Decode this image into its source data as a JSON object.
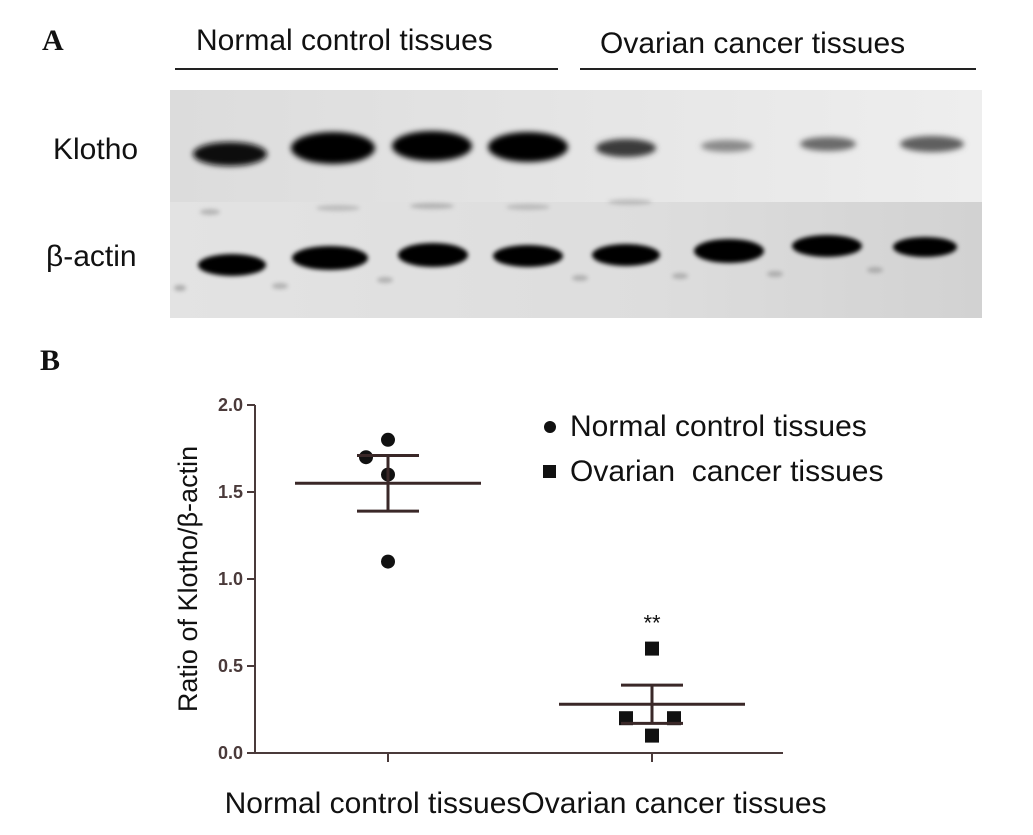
{
  "panel_a": {
    "letter": "A",
    "header_left": "Normal control tissues",
    "header_right": "Ovarian cancer tissues",
    "row_labels": [
      "Klotho",
      "β-actin"
    ]
  },
  "panel_b": {
    "letter": "B"
  },
  "chart_data": {
    "type": "scatter",
    "title": "",
    "xlabel": "",
    "ylabel": "Ratio of Klotho/β-actin",
    "categories": [
      "Normal control tissues",
      "Ovarian cancer tissues"
    ],
    "ylim": [
      0.0,
      2.0
    ],
    "yticks": [
      "0.0",
      "0.5",
      "1.0",
      "1.5",
      "2.0"
    ],
    "grid": false,
    "legend_position": "top-right",
    "series": [
      {
        "name": "Normal control tissues",
        "marker": "circle",
        "category": "Normal control tissues",
        "values": [
          1.8,
          1.7,
          1.6,
          1.1
        ],
        "mean": 1.55,
        "sem_upper": 1.71,
        "sem_lower": 1.39,
        "significance": ""
      },
      {
        "name": "Ovarian  cancer tissues",
        "marker": "square",
        "category": "Ovarian cancer tissues",
        "values": [
          0.6,
          0.2,
          0.2,
          0.1
        ],
        "mean": 0.28,
        "sem_upper": 0.39,
        "sem_lower": 0.17,
        "significance": "**"
      }
    ]
  }
}
